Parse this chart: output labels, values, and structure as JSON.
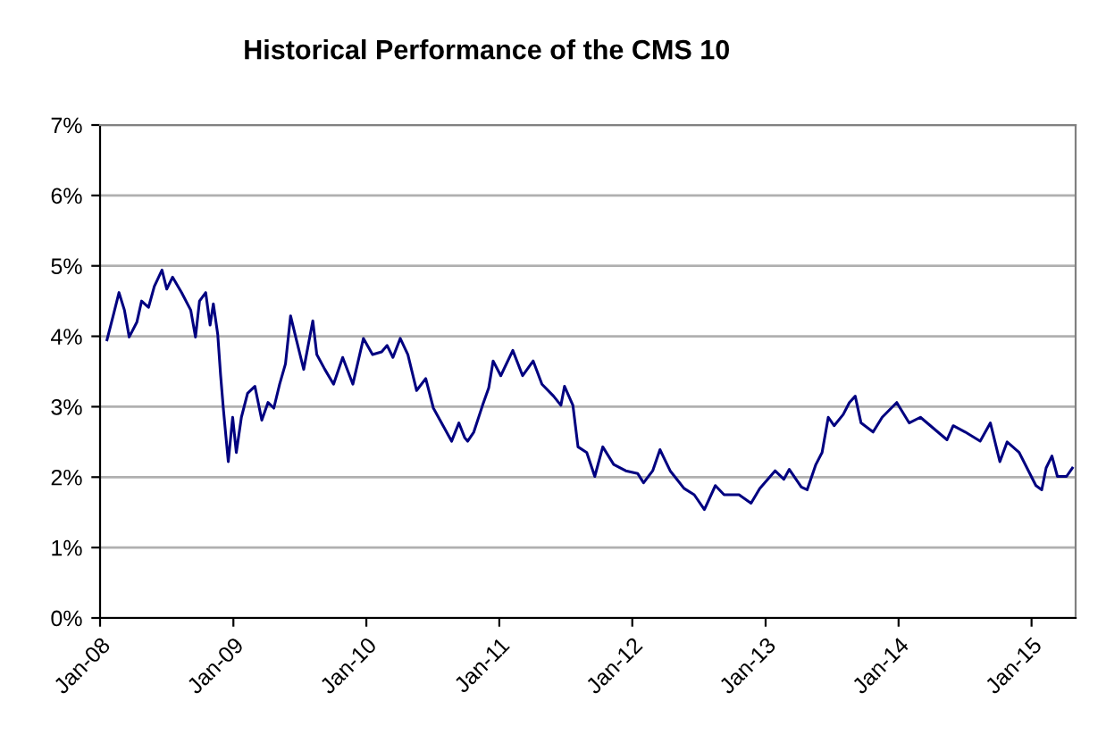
{
  "chart_data": {
    "type": "line",
    "title": "Historical Performance of the CMS 10",
    "x": [
      "2008-01-20",
      "2008-02-06",
      "2008-02-22",
      "2008-03-08",
      "2008-03-21",
      "2008-04-11",
      "2008-04-24",
      "2008-05-13",
      "2008-05-29",
      "2008-06-19",
      "2008-07-02",
      "2008-07-18",
      "2008-08-12",
      "2008-09-06",
      "2008-09-19",
      "2008-09-30",
      "2008-10-17",
      "2008-10-29",
      "2008-11-07",
      "2008-11-19",
      "2008-11-27",
      "2008-12-05",
      "2008-12-18",
      "2008-12-30",
      "2009-01-09",
      "2009-01-23",
      "2009-02-09",
      "2009-03-01",
      "2009-03-20",
      "2009-04-06",
      "2009-04-22",
      "2009-05-08",
      "2009-05-24",
      "2009-06-07",
      "2009-06-23",
      "2009-07-13",
      "2009-08-07",
      "2009-08-18",
      "2009-09-09",
      "2009-10-03",
      "2009-10-28",
      "2009-11-25",
      "2009-12-24",
      "2010-01-18",
      "2010-02-12",
      "2010-02-27",
      "2010-03-15",
      "2010-04-04",
      "2010-04-25",
      "2010-05-19",
      "2010-06-13",
      "2010-07-04",
      "2010-08-23",
      "2010-09-12",
      "2010-09-28",
      "2010-10-06",
      "2010-10-23",
      "2010-11-16",
      "2010-12-03",
      "2010-12-15",
      "2011-01-05",
      "2011-02-07",
      "2011-03-06",
      "2011-04-04",
      "2011-04-28",
      "2011-05-30",
      "2011-06-19",
      "2011-06-29",
      "2011-07-22",
      "2011-08-05",
      "2011-08-29",
      "2011-09-20",
      "2011-10-12",
      "2011-11-11",
      "2011-12-14",
      "2012-01-16",
      "2012-02-01",
      "2012-02-26",
      "2012-03-17",
      "2012-04-14",
      "2012-05-22",
      "2012-06-19",
      "2012-07-17",
      "2012-08-16",
      "2012-09-09",
      "2012-10-20",
      "2012-11-22",
      "2012-12-16",
      "2013-01-27",
      "2013-02-20",
      "2013-03-07",
      "2013-04-09",
      "2013-04-25",
      "2013-05-19",
      "2013-06-05",
      "2013-06-22",
      "2013-07-08",
      "2013-08-02",
      "2013-08-19",
      "2013-09-04",
      "2013-09-20",
      "2013-10-23",
      "2013-11-17",
      "2013-12-27",
      "2014-01-30",
      "2014-03-02",
      "2014-05-14",
      "2014-05-31",
      "2014-07-03",
      "2014-08-13",
      "2014-09-10",
      "2014-10-06",
      "2014-10-26",
      "2014-11-28",
      "2015-01-13",
      "2015-01-29",
      "2015-02-10",
      "2015-02-26",
      "2015-03-13",
      "2015-04-07",
      "2015-04-23"
    ],
    "values": [
      3.95,
      4.29,
      4.62,
      4.37,
      3.99,
      4.2,
      4.5,
      4.41,
      4.71,
      4.94,
      4.67,
      4.84,
      4.62,
      4.37,
      3.99,
      4.5,
      4.62,
      4.16,
      4.46,
      4.03,
      3.44,
      2.94,
      2.22,
      2.85,
      2.35,
      2.85,
      3.19,
      3.29,
      2.81,
      3.06,
      2.98,
      3.32,
      3.61,
      4.29,
      3.95,
      3.53,
      4.22,
      3.74,
      3.53,
      3.32,
      3.7,
      3.32,
      3.97,
      3.74,
      3.78,
      3.87,
      3.7,
      3.97,
      3.74,
      3.23,
      3.4,
      2.98,
      2.51,
      2.77,
      2.56,
      2.51,
      2.64,
      3.02,
      3.27,
      3.65,
      3.44,
      3.8,
      3.44,
      3.65,
      3.32,
      3.15,
      3.02,
      3.29,
      3.02,
      2.43,
      2.35,
      2.01,
      2.43,
      2.18,
      2.09,
      2.05,
      1.92,
      2.09,
      2.39,
      2.09,
      1.84,
      1.75,
      1.54,
      1.88,
      1.75,
      1.75,
      1.63,
      1.84,
      2.09,
      1.97,
      2.11,
      1.86,
      1.82,
      2.18,
      2.35,
      2.85,
      2.73,
      2.89,
      3.06,
      3.15,
      2.77,
      2.64,
      2.85,
      3.06,
      2.77,
      2.85,
      2.53,
      2.73,
      2.64,
      2.51,
      2.77,
      2.22,
      2.5,
      2.35,
      1.88,
      1.82,
      2.13,
      2.3,
      2.01,
      2.01,
      2.13
    ],
    "color": "#000080",
    "xlim": [
      "2008-01-01",
      "2015-05-02"
    ],
    "xticks": [
      {
        "value": "2008-01-01",
        "label": "Jan-08"
      },
      {
        "value": "2009-01-01",
        "label": "Jan-09"
      },
      {
        "value": "2010-01-01",
        "label": "Jan-10"
      },
      {
        "value": "2011-01-01",
        "label": "Jan-11"
      },
      {
        "value": "2012-01-01",
        "label": "Jan-12"
      },
      {
        "value": "2013-01-01",
        "label": "Jan-13"
      },
      {
        "value": "2014-01-01",
        "label": "Jan-14"
      },
      {
        "value": "2015-01-01",
        "label": "Jan-15"
      }
    ],
    "ylim": [
      0,
      7
    ],
    "yticks": [
      {
        "value": 0,
        "label": "0%"
      },
      {
        "value": 1,
        "label": "1%"
      },
      {
        "value": 2,
        "label": "2%"
      },
      {
        "value": 3,
        "label": "3%"
      },
      {
        "value": 4,
        "label": "4%"
      },
      {
        "value": 5,
        "label": "5%"
      },
      {
        "value": 6,
        "label": "6%"
      },
      {
        "value": 7,
        "label": "7%"
      }
    ],
    "grid": "y"
  }
}
